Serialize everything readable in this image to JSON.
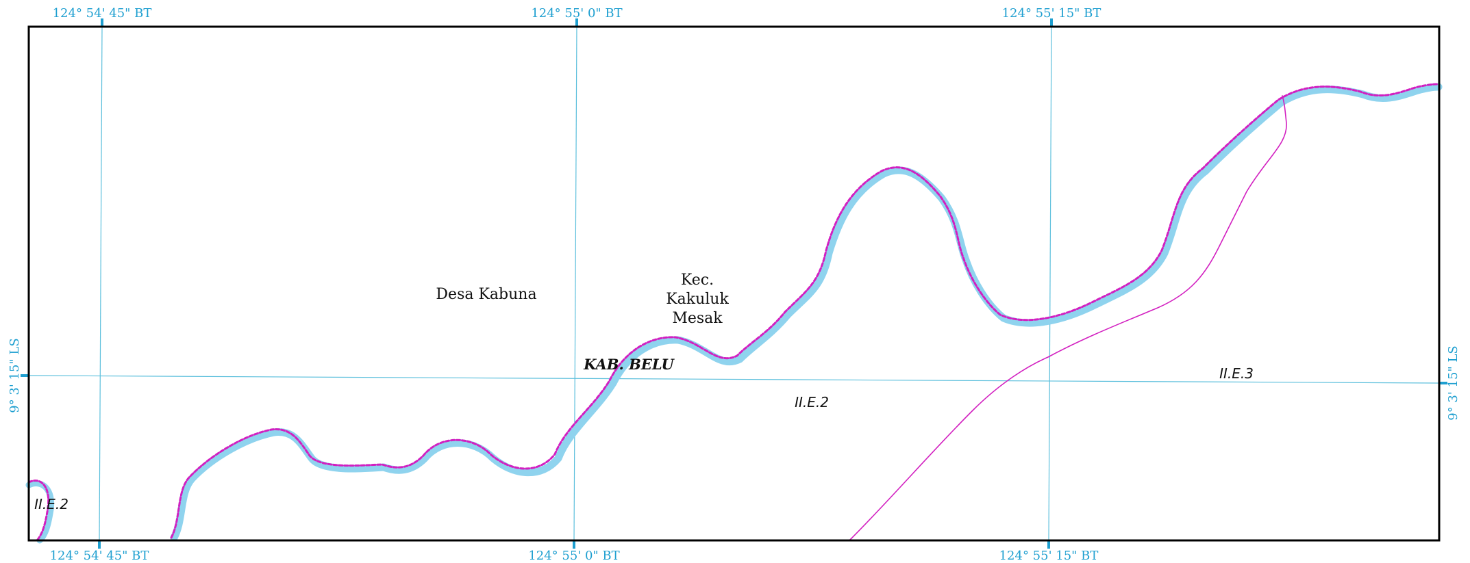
{
  "map": {
    "colors": {
      "grid": "#5bbfdc",
      "river_fill": "#8fd3ee",
      "boundary": "#d21fc0",
      "frame": "#000000",
      "coord_text": "#1e9fd0"
    },
    "top_labels": [
      "124° 54' 45\" BT",
      "124° 55' 0\" BT",
      "124° 55' 15\" BT"
    ],
    "bottom_labels": [
      "124° 54' 45\" BT",
      "124° 55' 0\" BT",
      "124° 55' 15\" BT"
    ],
    "left_label": "9° 3' 15\" LS",
    "right_label": "9° 3' 15\" LS",
    "places": {
      "desa": "Desa Kabuna",
      "kec_line1": "Kec.",
      "kec_line2": "Kakuluk",
      "kec_line3": "Mesak",
      "kab": "KAB. BELU"
    },
    "codes": {
      "left": "II.E.2",
      "center": "II.E.2",
      "right": "II.E.3"
    }
  }
}
